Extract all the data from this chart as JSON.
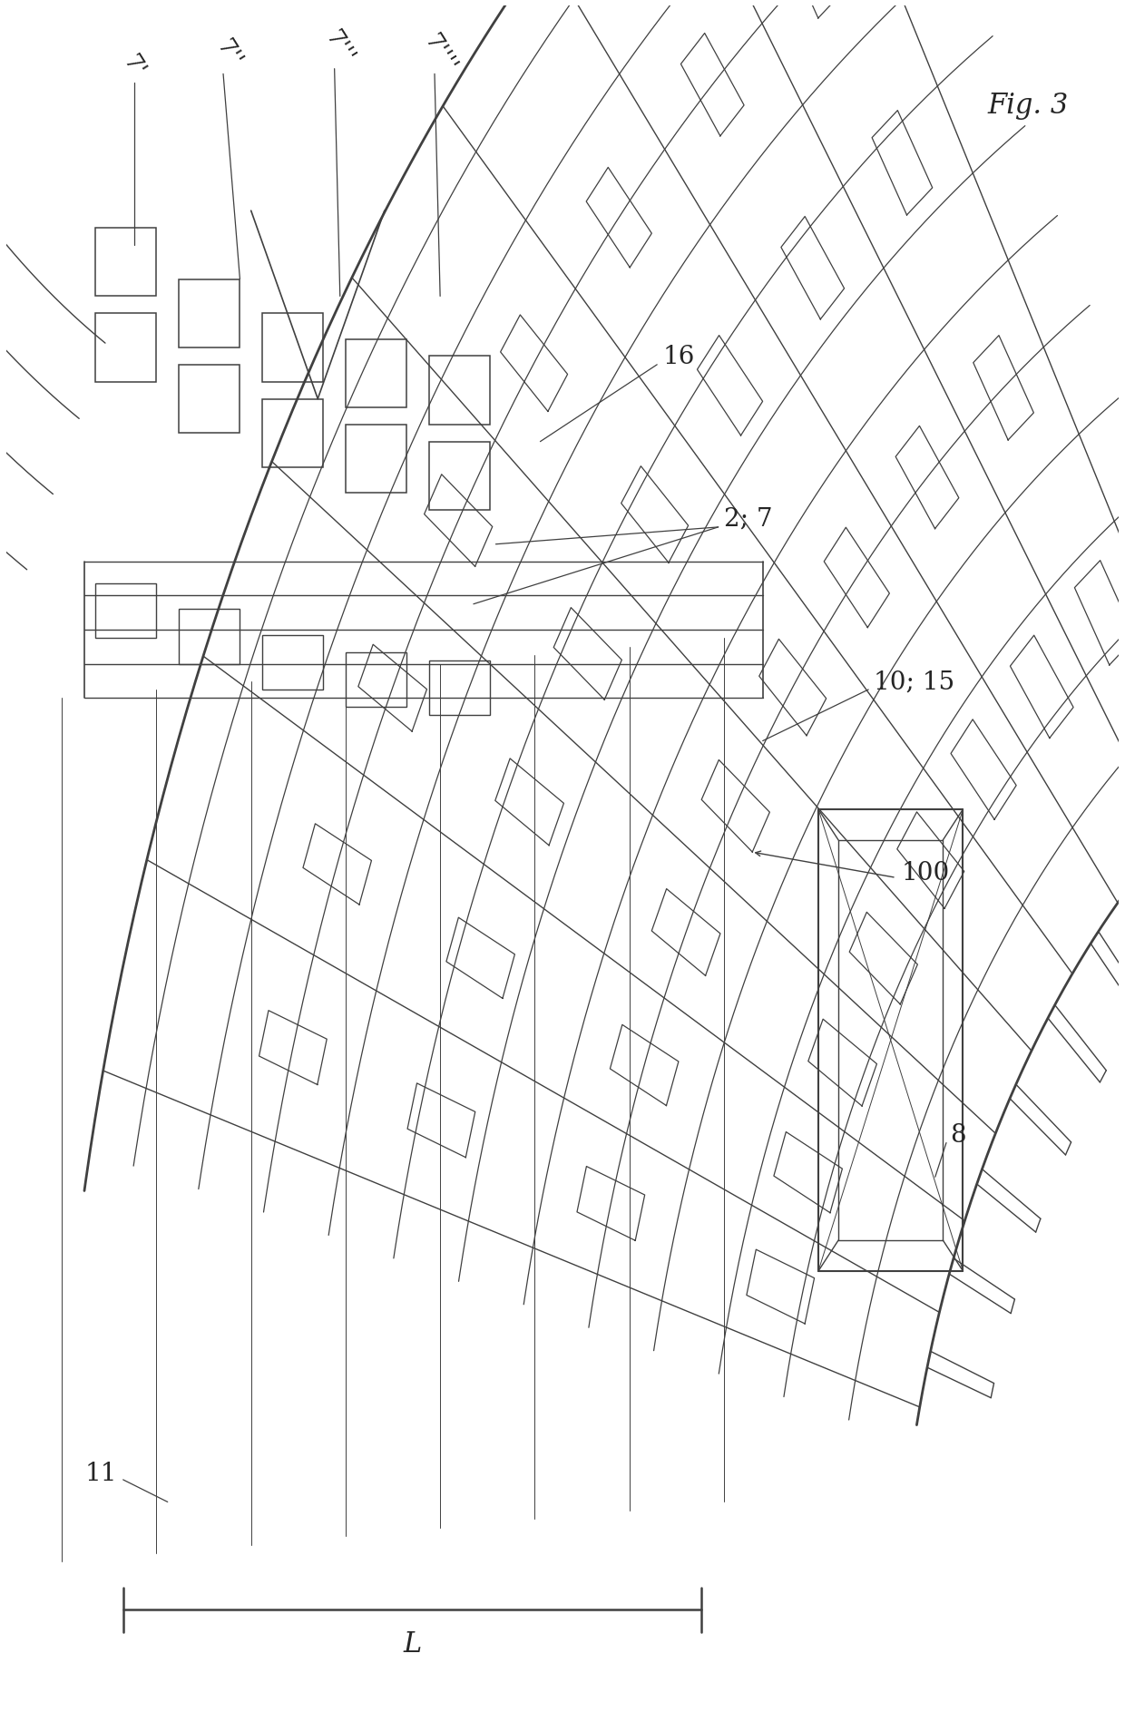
{
  "title": "Fig. 3",
  "background_color": "#ffffff",
  "line_color": "#404040",
  "line_width": 1.0,
  "label_7p": "7’",
  "label_7pp": "7’’",
  "label_7ppp": "7’’’",
  "label_7pppp": "7’’’’",
  "label_16": "16",
  "label_27": "2; 7",
  "label_1015": "10; 15",
  "label_100": "100",
  "label_8": "8",
  "label_11": "11",
  "label_L": "L",
  "label_fig3": "Fig. 3"
}
